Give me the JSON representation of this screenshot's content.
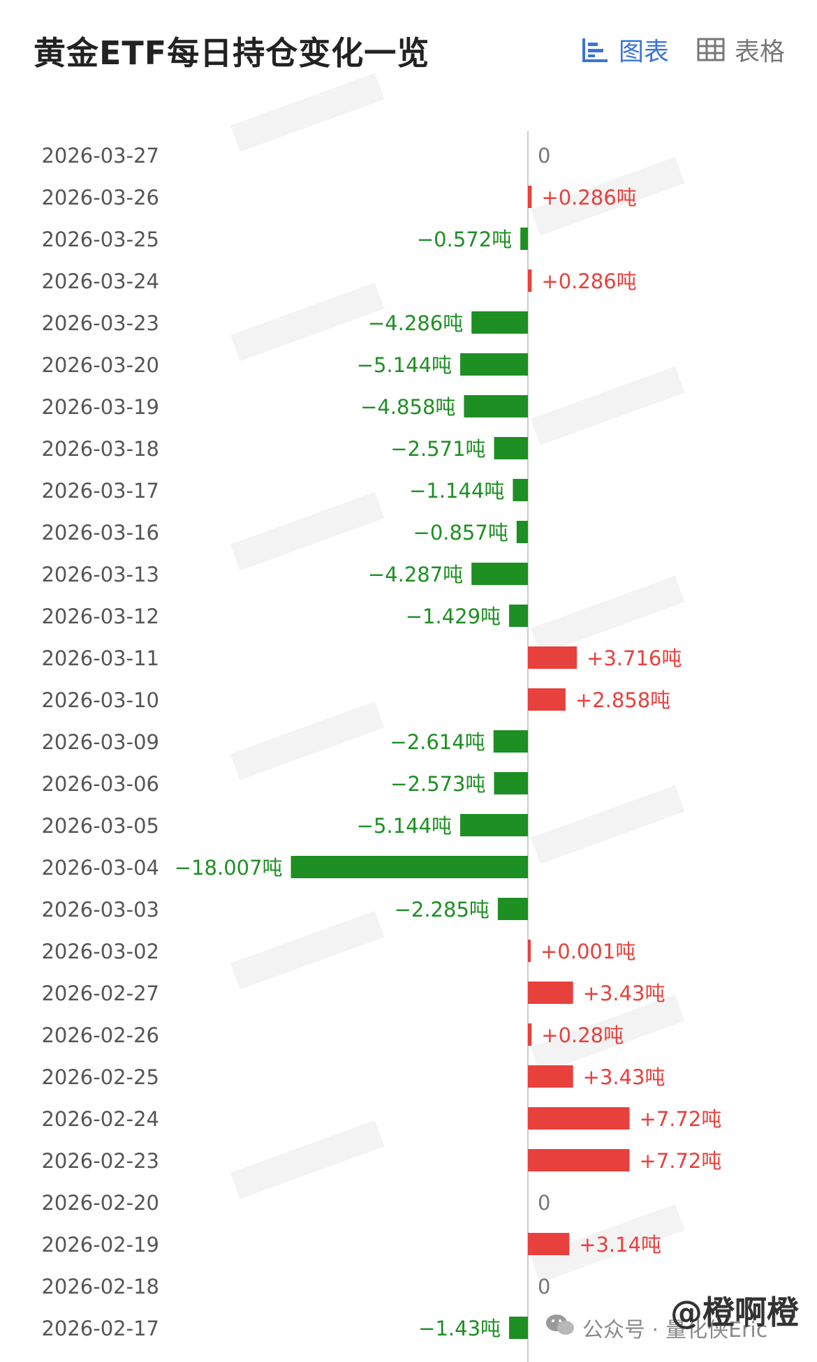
{
  "header": {
    "title": "黄金ETF每日持仓变化一览",
    "tab_chart": "图表",
    "tab_table": "表格"
  },
  "colors": {
    "positive": "#e8403c",
    "negative": "#1e8f23",
    "zero": "#777777",
    "accent": "#3b74d6"
  },
  "footer": {
    "account_prefix": "公众号 · ",
    "account_name": "量化侠Eric",
    "handle": "@橙啊橙"
  },
  "chart_data": {
    "type": "bar",
    "orientation": "horizontal",
    "unit": "吨",
    "categories": [
      "2026-03-27",
      "2026-03-26",
      "2026-03-25",
      "2026-03-24",
      "2026-03-23",
      "2026-03-20",
      "2026-03-19",
      "2026-03-18",
      "2026-03-17",
      "2026-03-16",
      "2026-03-13",
      "2026-03-12",
      "2026-03-11",
      "2026-03-10",
      "2026-03-09",
      "2026-03-06",
      "2026-03-05",
      "2026-03-04",
      "2026-03-03",
      "2026-03-02",
      "2026-02-27",
      "2026-02-26",
      "2026-02-25",
      "2026-02-24",
      "2026-02-23",
      "2026-02-20",
      "2026-02-19",
      "2026-02-18",
      "2026-02-17"
    ],
    "values": [
      0,
      0.286,
      -0.572,
      0.286,
      -4.286,
      -5.144,
      -4.858,
      -2.571,
      -1.144,
      -0.857,
      -4.287,
      -1.429,
      3.716,
      2.858,
      -2.614,
      -2.573,
      -5.144,
      -18.007,
      -2.285,
      0.001,
      3.43,
      0.28,
      3.43,
      7.72,
      7.72,
      0,
      3.14,
      0,
      -1.43
    ],
    "labels": [
      "0",
      "+0.286吨",
      "−0.572吨",
      "+0.286吨",
      "−4.286吨",
      "−5.144吨",
      "−4.858吨",
      "−2.571吨",
      "−1.144吨",
      "−0.857吨",
      "−4.287吨",
      "−1.429吨",
      "+3.716吨",
      "+2.858吨",
      "−2.614吨",
      "−2.573吨",
      "−5.144吨",
      "−18.007吨",
      "−2.285吨",
      "+0.001吨",
      "+3.43吨",
      "+0.28吨",
      "+3.43吨",
      "+7.72吨",
      "+7.72吨",
      "0",
      "+3.14吨",
      "0",
      "−1.43吨"
    ],
    "grid": false,
    "legend": "none"
  }
}
